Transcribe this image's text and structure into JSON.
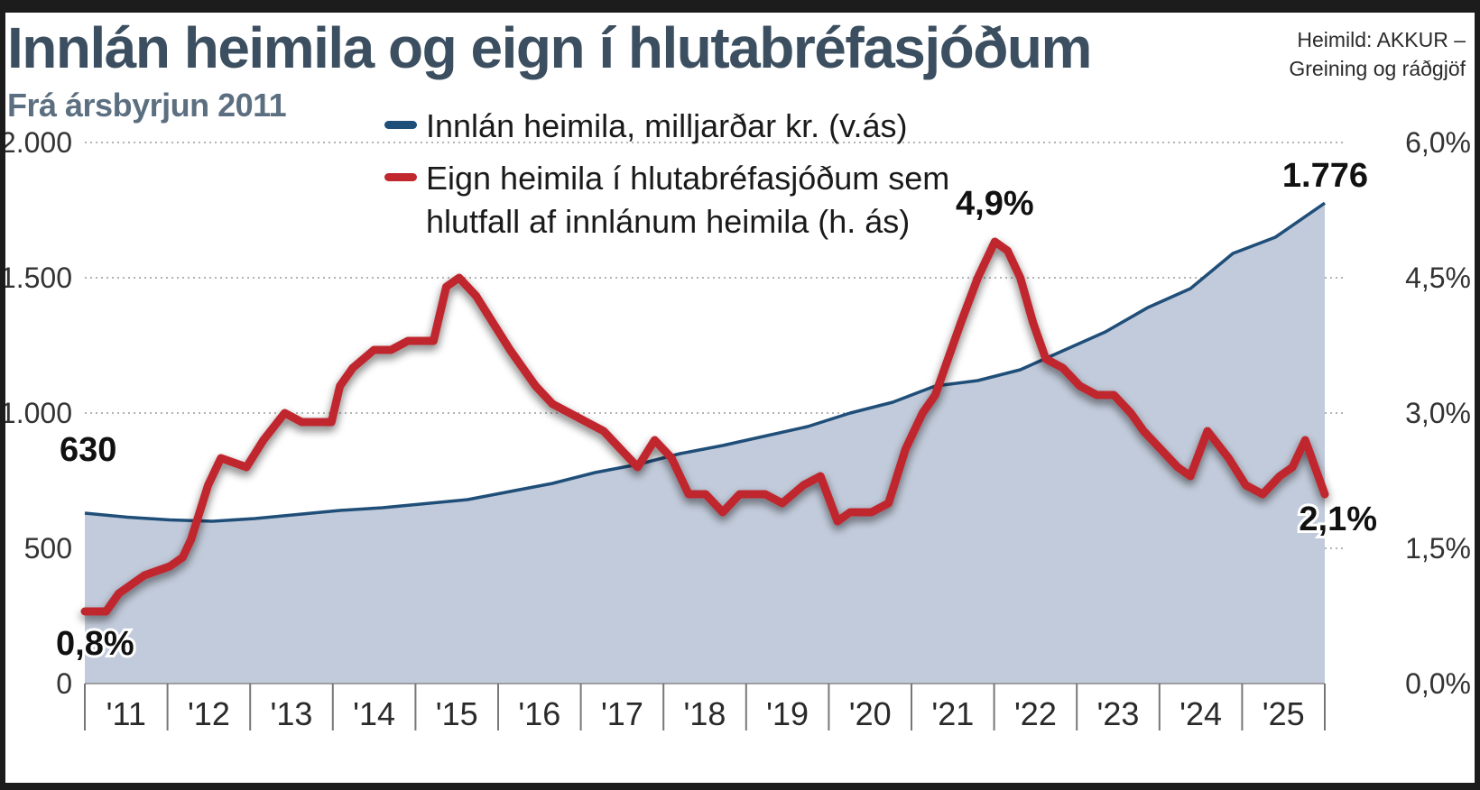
{
  "header": {
    "title": "Innlán heimila og eign í hlutabréfasjóðum",
    "subtitle": "Frá ársbyrjun 2011",
    "source_line1": "Heimild: AKKUR  –",
    "source_line2": "Greining og ráðgjöf"
  },
  "legend": {
    "deposits": "Innlán heimila, milljarðar kr. (v.ás)",
    "equity": "Eign heimila í hlutabréfasjóðum sem hlutfall af innlánum heimila (h. ás)"
  },
  "colors": {
    "deposits_line": "#1f4e79",
    "deposits_area": "#c2cbdb",
    "equity_line": "#c0282d",
    "title": "#3c4f60",
    "subtitle": "#5c6f80"
  },
  "chart_data": {
    "type": "line",
    "x_axis": {
      "range": [
        2011.0,
        2025.58
      ],
      "tick_labels": [
        "'11",
        "'12",
        "'13",
        "'14",
        "'15",
        "'16",
        "'17",
        "'18",
        "'19",
        "'20",
        "'21",
        "'22",
        "'23",
        "'24",
        "'25"
      ]
    },
    "y_left": {
      "ylim": [
        0,
        2000
      ],
      "ticks": [
        0,
        500,
        1000,
        1500,
        2000
      ],
      "tick_labels": [
        "0",
        "500",
        "1.000",
        "1.500",
        "2.000"
      ]
    },
    "y_right": {
      "ylim": [
        0,
        6.0
      ],
      "ticks": [
        0,
        1.5,
        3.0,
        4.5,
        6.0
      ],
      "tick_labels": [
        "0,0%",
        "1,5%",
        "3,0%",
        "4,5%",
        "6,0%"
      ]
    },
    "grid": true,
    "legend_position": "top-center",
    "series": [
      {
        "name": "Innlán heimila, milljarðar kr. (v.ás)",
        "axis": "left",
        "style": "area-line",
        "x": [
          2011.0,
          2011.5,
          2012.0,
          2012.5,
          2013.0,
          2013.5,
          2014.0,
          2014.5,
          2015.0,
          2015.5,
          2016.0,
          2016.5,
          2017.0,
          2017.5,
          2018.0,
          2018.5,
          2019.0,
          2019.5,
          2020.0,
          2020.5,
          2021.0,
          2021.5,
          2022.0,
          2022.5,
          2023.0,
          2023.5,
          2024.0,
          2024.5,
          2025.0,
          2025.58
        ],
        "values": [
          630,
          615,
          605,
          600,
          610,
          625,
          640,
          650,
          665,
          680,
          710,
          740,
          780,
          810,
          850,
          880,
          915,
          950,
          1000,
          1040,
          1100,
          1120,
          1160,
          1230,
          1300,
          1390,
          1460,
          1590,
          1650,
          1776
        ]
      },
      {
        "name": "Eign heimila í hlutabréfasjóðum sem hlutfall af innlánum heimila (h. ás)",
        "axis": "right",
        "style": "line",
        "x": [
          2011.0,
          2011.25,
          2011.4,
          2011.7,
          2012.0,
          2012.15,
          2012.25,
          2012.45,
          2012.6,
          2012.9,
          2013.1,
          2013.35,
          2013.55,
          2013.9,
          2014.0,
          2014.15,
          2014.4,
          2014.6,
          2014.8,
          2015.1,
          2015.25,
          2015.4,
          2015.6,
          2015.8,
          2016.0,
          2016.15,
          2016.3,
          2016.5,
          2016.7,
          2016.9,
          2017.1,
          2017.3,
          2017.5,
          2017.7,
          2017.9,
          2018.1,
          2018.3,
          2018.5,
          2018.7,
          2019.0,
          2019.2,
          2019.45,
          2019.65,
          2019.85,
          2020.0,
          2020.25,
          2020.45,
          2020.65,
          2020.85,
          2021.0,
          2021.15,
          2021.3,
          2021.5,
          2021.7,
          2021.85,
          2022.0,
          2022.15,
          2022.3,
          2022.5,
          2022.7,
          2022.9,
          2023.1,
          2023.3,
          2023.45,
          2023.65,
          2023.85,
          2024.0,
          2024.2,
          2024.45,
          2024.65,
          2024.85,
          2025.05,
          2025.2,
          2025.35,
          2025.58
        ],
        "values": [
          0.8,
          0.8,
          1.0,
          1.2,
          1.3,
          1.4,
          1.6,
          2.2,
          2.5,
          2.4,
          2.7,
          3.0,
          2.9,
          2.9,
          3.3,
          3.5,
          3.7,
          3.7,
          3.8,
          3.8,
          4.4,
          4.5,
          4.3,
          4.0,
          3.7,
          3.5,
          3.3,
          3.1,
          3.0,
          2.9,
          2.8,
          2.6,
          2.4,
          2.7,
          2.5,
          2.1,
          2.1,
          1.9,
          2.1,
          2.1,
          2.0,
          2.2,
          2.3,
          1.8,
          1.9,
          1.9,
          2.0,
          2.6,
          3.0,
          3.2,
          3.6,
          4.0,
          4.5,
          4.9,
          4.8,
          4.5,
          4.0,
          3.6,
          3.5,
          3.3,
          3.2,
          3.2,
          3.0,
          2.8,
          2.6,
          2.4,
          2.3,
          2.8,
          2.5,
          2.2,
          2.1,
          2.3,
          2.4,
          2.7,
          2.1
        ]
      }
    ],
    "annotations": [
      {
        "text": "630",
        "series": 0,
        "x": 2011.0,
        "value": 630
      },
      {
        "text": "1.776",
        "series": 0,
        "x": 2025.58,
        "value": 1776
      },
      {
        "text": "0,8%",
        "series": 1,
        "x": 2011.0,
        "value": 0.8
      },
      {
        "text": "4,9%",
        "series": 1,
        "x": 2021.7,
        "value": 4.9
      },
      {
        "text": "2,1%",
        "series": 1,
        "x": 2025.58,
        "value": 2.1
      }
    ]
  }
}
